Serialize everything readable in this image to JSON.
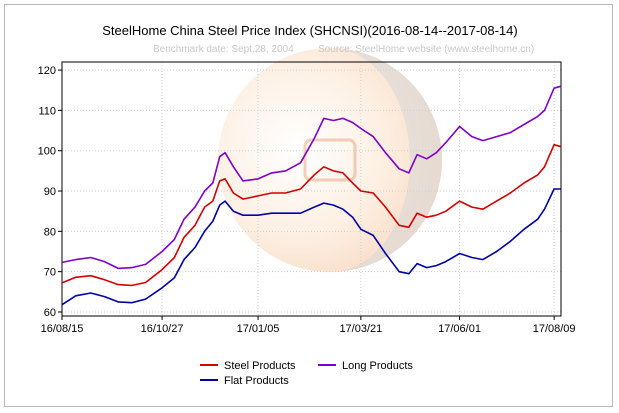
{
  "chart_data": {
    "type": "line",
    "title": "SteelHome China Steel Price Index (SHCNSI)(2016-08-14--2017-08-14)",
    "benchmark_note": "Benchmark date: Sept.28, 2004",
    "source_note": "Source: SteelHome website (www.steelhome.cn)",
    "xlabel": "",
    "ylabel": "",
    "ylim": [
      59,
      122
    ],
    "yticks": [
      60,
      70,
      80,
      90,
      100,
      110,
      120
    ],
    "xlim": [
      "2016-08-15",
      "2017-08-14"
    ],
    "xticks": [
      "2016-08-15",
      "2016-10-27",
      "2017-01-05",
      "2017-03-21",
      "2017-06-01",
      "2017-08-09"
    ],
    "xtick_labels": [
      "16/08/15",
      "16/10/27",
      "17/01/05",
      "17/03/21",
      "17/06/01",
      "17/08/09"
    ],
    "grid": true,
    "legend_position": "bottom-center",
    "series": [
      {
        "name": "Steel Products",
        "color": "#d40000",
        "points": [
          [
            "2016-08-15",
            67.2
          ],
          [
            "2016-08-25",
            68.6
          ],
          [
            "2016-09-05",
            69.0
          ],
          [
            "2016-09-15",
            68.0
          ],
          [
            "2016-09-25",
            66.8
          ],
          [
            "2016-10-05",
            66.6
          ],
          [
            "2016-10-15",
            67.3
          ],
          [
            "2016-10-27",
            70.5
          ],
          [
            "2016-11-05",
            73.5
          ],
          [
            "2016-11-12",
            78.5
          ],
          [
            "2016-11-20",
            81.5
          ],
          [
            "2016-11-27",
            86.0
          ],
          [
            "2016-12-03",
            87.5
          ],
          [
            "2016-12-08",
            92.5
          ],
          [
            "2016-12-12",
            93.0
          ],
          [
            "2016-12-18",
            89.5
          ],
          [
            "2016-12-25",
            88.0
          ],
          [
            "2017-01-05",
            88.8
          ],
          [
            "2017-01-15",
            89.5
          ],
          [
            "2017-01-25",
            89.5
          ],
          [
            "2017-02-05",
            90.5
          ],
          [
            "2017-02-15",
            94.0
          ],
          [
            "2017-02-22",
            96.0
          ],
          [
            "2017-03-01",
            95.0
          ],
          [
            "2017-03-08",
            94.5
          ],
          [
            "2017-03-15",
            92.0
          ],
          [
            "2017-03-21",
            90.0
          ],
          [
            "2017-03-30",
            89.5
          ],
          [
            "2017-04-08",
            86.0
          ],
          [
            "2017-04-18",
            81.5
          ],
          [
            "2017-04-25",
            81.0
          ],
          [
            "2017-05-01",
            84.5
          ],
          [
            "2017-05-08",
            83.5
          ],
          [
            "2017-05-15",
            84.0
          ],
          [
            "2017-05-22",
            85.0
          ],
          [
            "2017-06-01",
            87.5
          ],
          [
            "2017-06-10",
            86.0
          ],
          [
            "2017-06-18",
            85.5
          ],
          [
            "2017-06-28",
            87.5
          ],
          [
            "2017-07-08",
            89.5
          ],
          [
            "2017-07-18",
            92.0
          ],
          [
            "2017-07-28",
            94.0
          ],
          [
            "2017-08-02",
            96.0
          ],
          [
            "2017-08-09",
            101.5
          ],
          [
            "2017-08-14",
            101.0
          ]
        ]
      },
      {
        "name": "Long Products",
        "color": "#8000c8",
        "points": [
          [
            "2016-08-15",
            72.3
          ],
          [
            "2016-08-25",
            73.0
          ],
          [
            "2016-09-05",
            73.5
          ],
          [
            "2016-09-15",
            72.5
          ],
          [
            "2016-09-25",
            70.8
          ],
          [
            "2016-10-05",
            71.0
          ],
          [
            "2016-10-15",
            71.8
          ],
          [
            "2016-10-27",
            75.0
          ],
          [
            "2016-11-05",
            78.0
          ],
          [
            "2016-11-12",
            83.0
          ],
          [
            "2016-11-20",
            86.0
          ],
          [
            "2016-11-27",
            90.0
          ],
          [
            "2016-12-03",
            92.0
          ],
          [
            "2016-12-08",
            98.5
          ],
          [
            "2016-12-12",
            99.5
          ],
          [
            "2016-12-18",
            96.0
          ],
          [
            "2016-12-25",
            92.5
          ],
          [
            "2017-01-05",
            93.0
          ],
          [
            "2017-01-15",
            94.5
          ],
          [
            "2017-01-25",
            95.0
          ],
          [
            "2017-02-05",
            97.0
          ],
          [
            "2017-02-15",
            103.0
          ],
          [
            "2017-02-22",
            108.0
          ],
          [
            "2017-03-01",
            107.5
          ],
          [
            "2017-03-08",
            108.0
          ],
          [
            "2017-03-15",
            107.0
          ],
          [
            "2017-03-21",
            105.5
          ],
          [
            "2017-03-30",
            103.5
          ],
          [
            "2017-04-08",
            99.5
          ],
          [
            "2017-04-18",
            95.5
          ],
          [
            "2017-04-25",
            94.5
          ],
          [
            "2017-05-01",
            99.0
          ],
          [
            "2017-05-08",
            98.0
          ],
          [
            "2017-05-15",
            99.5
          ],
          [
            "2017-05-22",
            102.0
          ],
          [
            "2017-06-01",
            106.0
          ],
          [
            "2017-06-10",
            103.5
          ],
          [
            "2017-06-18",
            102.5
          ],
          [
            "2017-06-28",
            103.5
          ],
          [
            "2017-07-08",
            104.5
          ],
          [
            "2017-07-18",
            106.5
          ],
          [
            "2017-07-28",
            108.5
          ],
          [
            "2017-08-02",
            110.0
          ],
          [
            "2017-08-09",
            115.5
          ],
          [
            "2017-08-14",
            116.0
          ]
        ]
      },
      {
        "name": "Flat Products",
        "color": "#0000a8",
        "points": [
          [
            "2016-08-15",
            61.8
          ],
          [
            "2016-08-25",
            64.0
          ],
          [
            "2016-09-05",
            64.7
          ],
          [
            "2016-09-15",
            63.8
          ],
          [
            "2016-09-25",
            62.5
          ],
          [
            "2016-10-05",
            62.3
          ],
          [
            "2016-10-15",
            63.2
          ],
          [
            "2016-10-27",
            66.0
          ],
          [
            "2016-11-05",
            68.5
          ],
          [
            "2016-11-12",
            73.0
          ],
          [
            "2016-11-20",
            76.0
          ],
          [
            "2016-11-27",
            80.0
          ],
          [
            "2016-12-03",
            82.5
          ],
          [
            "2016-12-08",
            86.5
          ],
          [
            "2016-12-12",
            87.5
          ],
          [
            "2016-12-18",
            85.0
          ],
          [
            "2016-12-25",
            84.0
          ],
          [
            "2017-01-05",
            84.0
          ],
          [
            "2017-01-15",
            84.5
          ],
          [
            "2017-01-25",
            84.5
          ],
          [
            "2017-02-05",
            84.5
          ],
          [
            "2017-02-15",
            86.0
          ],
          [
            "2017-02-22",
            87.0
          ],
          [
            "2017-03-01",
            86.5
          ],
          [
            "2017-03-08",
            85.5
          ],
          [
            "2017-03-15",
            83.5
          ],
          [
            "2017-03-21",
            80.5
          ],
          [
            "2017-03-30",
            79.0
          ],
          [
            "2017-04-08",
            74.5
          ],
          [
            "2017-04-18",
            70.0
          ],
          [
            "2017-04-25",
            69.5
          ],
          [
            "2017-05-01",
            72.0
          ],
          [
            "2017-05-08",
            71.0
          ],
          [
            "2017-05-15",
            71.5
          ],
          [
            "2017-05-22",
            72.5
          ],
          [
            "2017-06-01",
            74.5
          ],
          [
            "2017-06-10",
            73.5
          ],
          [
            "2017-06-18",
            73.0
          ],
          [
            "2017-06-28",
            75.0
          ],
          [
            "2017-07-08",
            77.5
          ],
          [
            "2017-07-18",
            80.5
          ],
          [
            "2017-07-28",
            83.0
          ],
          [
            "2017-08-02",
            85.5
          ],
          [
            "2017-08-09",
            90.5
          ],
          [
            "2017-08-14",
            90.5
          ]
        ]
      }
    ],
    "legend_order": [
      "Steel Products",
      "Long Products",
      "Flat Products"
    ]
  }
}
